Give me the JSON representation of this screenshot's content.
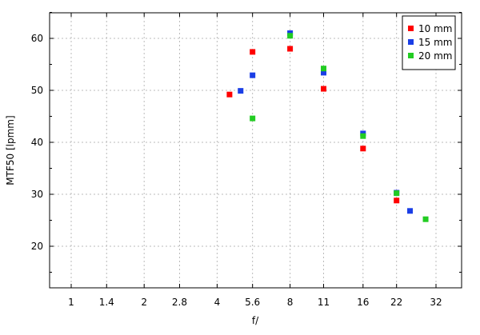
{
  "chart_data": {
    "type": "scatter",
    "title": "",
    "xlabel": "f/",
    "ylabel": "MTF50 [lpmm]",
    "x_scale": "log",
    "x_ticks": [
      1,
      1.4,
      2,
      2.8,
      4,
      5.6,
      8,
      11,
      16,
      22,
      32
    ],
    "x_tick_labels": [
      "1",
      "1.4",
      "2",
      "2.8",
      "4",
      "5.6",
      "8",
      "11",
      "16",
      "22",
      "32"
    ],
    "xlim": [
      0.75,
      40
    ],
    "y_ticks": [
      20,
      30,
      40,
      50,
      60
    ],
    "y_tick_labels": [
      "20",
      "30",
      "40",
      "50",
      "60"
    ],
    "ylim": [
      12,
      66
    ],
    "grid": true,
    "legend_position": "top-right",
    "series": [
      {
        "name": "10 mm",
        "color": "#ff0000",
        "x": [
          4.5,
          5.6,
          8,
          11,
          16,
          22
        ],
        "y": [
          49.2,
          57.4,
          58.0,
          50.3,
          38.8,
          28.8
        ]
      },
      {
        "name": "15 mm",
        "color": "#1a3ee6",
        "x": [
          5.0,
          5.6,
          8,
          11,
          16,
          22,
          25
        ],
        "y": [
          49.9,
          52.9,
          61.0,
          53.4,
          41.7,
          30.3,
          26.8
        ]
      },
      {
        "name": "20 mm",
        "color": "#22cc22",
        "x": [
          5.6,
          8,
          11,
          16,
          22,
          29
        ],
        "y": [
          44.6,
          60.5,
          54.2,
          41.2,
          30.2,
          25.2
        ]
      }
    ]
  }
}
